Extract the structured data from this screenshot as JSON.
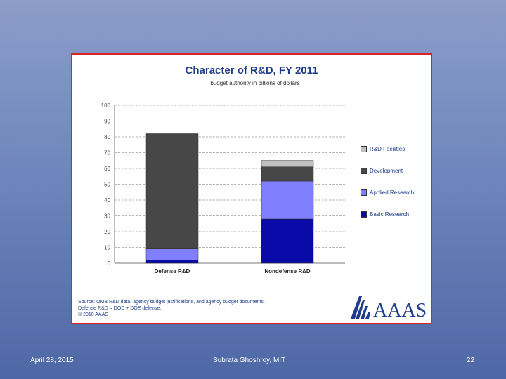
{
  "slide": {
    "footer_date": "April 28, 2015",
    "footer_author": "Subrata Ghoshroy, MIT",
    "page_number": "22"
  },
  "chart_data": {
    "type": "bar",
    "stacked": true,
    "title": "Character of R&D, FY 2011",
    "subtitle": "budget authority in billions of dollars",
    "categories": [
      "Defense R&D",
      "Nondefense R&D"
    ],
    "series": [
      {
        "name": "Basic Research",
        "values": [
          2,
          28
        ],
        "color": "#0a0aa8"
      },
      {
        "name": "Applied Research",
        "values": [
          7,
          24
        ],
        "color": "#8080ff"
      },
      {
        "name": "Development",
        "values": [
          73,
          9
        ],
        "color": "#474747"
      },
      {
        "name": "R&D Facilities",
        "values": [
          0,
          4
        ],
        "color": "#c0c0c0"
      }
    ],
    "legend_order": [
      "R&D Facilities",
      "Development",
      "Applied Research",
      "Basic Research"
    ],
    "ylim": [
      0,
      100
    ],
    "yticks": [
      0,
      10,
      20,
      30,
      40,
      50,
      60,
      70,
      80,
      90,
      100
    ],
    "grid": true,
    "legend_position": "right",
    "source_lines": [
      "Source: OMB R&D data, agency budget justifications, and agency budget documents.",
      "Defense R&D = DOD + DOE defense.",
      "© 2010 AAAS"
    ],
    "logo_text": "AAAS"
  }
}
